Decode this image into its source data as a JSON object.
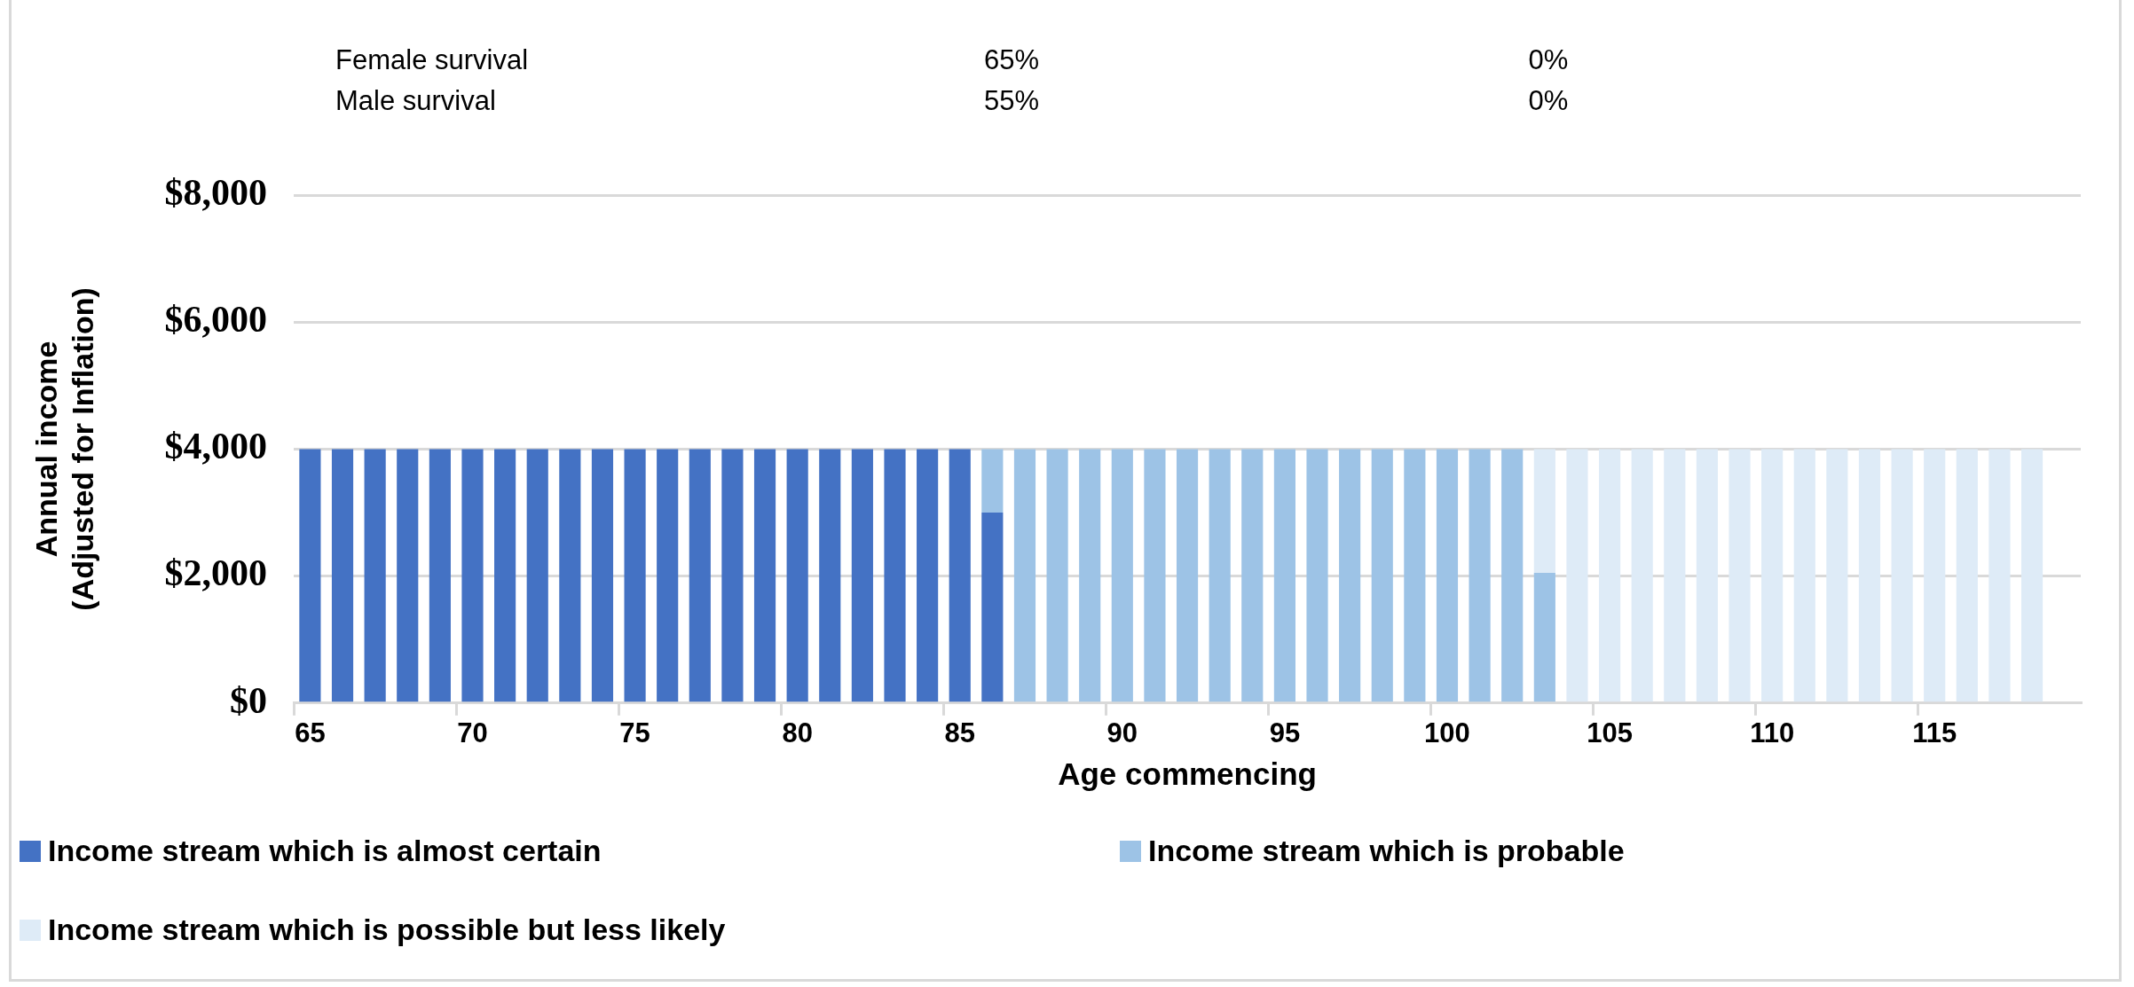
{
  "chart_data": {
    "type": "bar",
    "stacked": true,
    "xlabel": "Age commencing",
    "ylabel": "Annual income\n(Adjusted for Inflation)",
    "categories": [
      "65",
      null,
      null,
      null,
      null,
      "70",
      null,
      null,
      null,
      null,
      "75",
      null,
      null,
      null,
      null,
      "80",
      null,
      null,
      null,
      null,
      "85",
      null,
      null,
      null,
      null,
      "90",
      null,
      null,
      null,
      null,
      "95",
      null,
      null,
      null,
      null,
      "100",
      null,
      null,
      null,
      null,
      "105",
      null,
      null,
      null,
      null,
      "110",
      null,
      null,
      null,
      null,
      "115",
      null,
      null,
      null,
      null
    ],
    "series": [
      {
        "name": "Income stream which is almost certain",
        "color": "#4472c4",
        "values": [
          4000,
          4000,
          4000,
          4000,
          4000,
          4000,
          4000,
          4000,
          4000,
          4000,
          4000,
          4000,
          4000,
          4000,
          4000,
          4000,
          4000,
          4000,
          4000,
          4000,
          4000,
          3000,
          null,
          null,
          null,
          null,
          null,
          null,
          null,
          null,
          null,
          null,
          null,
          null,
          null,
          null,
          null,
          null,
          null,
          null,
          null,
          null,
          null,
          null,
          null,
          null,
          null,
          null,
          null,
          null,
          null,
          null,
          null,
          null,
          null
        ]
      },
      {
        "name": "Income stream which is probable",
        "color": "#9dc3e6",
        "values": [
          null,
          null,
          null,
          null,
          null,
          null,
          null,
          null,
          null,
          null,
          null,
          null,
          null,
          null,
          null,
          null,
          null,
          null,
          null,
          null,
          null,
          1000,
          4000,
          4000,
          4000,
          4000,
          4000,
          4000,
          4000,
          4000,
          4000,
          4000,
          4000,
          4000,
          4000,
          4000,
          4000,
          4000,
          2050,
          null,
          null,
          null,
          null,
          null,
          null,
          null,
          null,
          null,
          null,
          null,
          null,
          null,
          null,
          null,
          null
        ]
      },
      {
        "name": "Income stream which is possible but less likely",
        "color": "#deebf7",
        "values": [
          null,
          null,
          null,
          null,
          null,
          null,
          null,
          null,
          null,
          null,
          null,
          null,
          null,
          null,
          null,
          null,
          null,
          null,
          null,
          null,
          null,
          null,
          null,
          null,
          null,
          null,
          null,
          null,
          null,
          null,
          null,
          null,
          null,
          null,
          null,
          null,
          null,
          null,
          1950,
          4000,
          4000,
          4000,
          4000,
          4000,
          4000,
          4000,
          4000,
          4000,
          4000,
          4000,
          4000,
          4000,
          4000,
          4000,
          null
        ]
      }
    ],
    "ylim": [
      0,
      8000
    ],
    "yticks": [
      {
        "value": 0,
        "label": "$0"
      },
      {
        "value": 2000,
        "label": "$2,000"
      },
      {
        "value": 4000,
        "label": "$4,000"
      },
      {
        "value": 6000,
        "label": "$6,000"
      },
      {
        "value": 8000,
        "label": "$8,000"
      }
    ],
    "grid": "y",
    "legend": "bottom",
    "annotations": [
      "Female survival",
      "65%",
      "0%",
      "Male survival",
      "55%",
      "0%"
    ]
  }
}
